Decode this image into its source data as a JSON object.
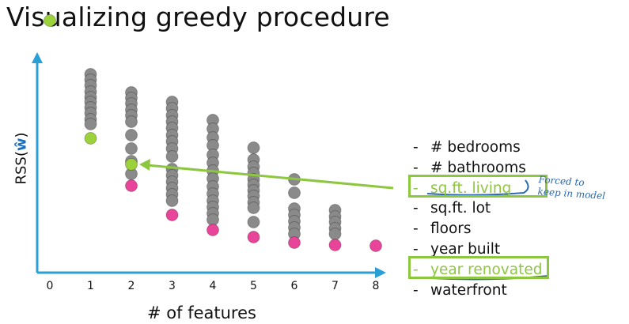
{
  "title": "Visualizing greedy procedure",
  "axes": {
    "y_label": "RSS(",
    "y_label_w": "ŵ",
    "y_label_close": ")",
    "x_label": "# of features"
  },
  "x_ticks": [
    "0",
    "1",
    "2",
    "3",
    "4",
    "5",
    "6",
    "7",
    "8"
  ],
  "features": [
    "# bedrooms",
    "# bathrooms",
    "sq.ft. living",
    "sq.ft. lot",
    "floors",
    "year built",
    "year renovated",
    "waterfront"
  ],
  "feature_dash": "-",
  "highlighted_features": [
    2,
    6
  ],
  "annotation": {
    "line1": "Forced to",
    "line2": "keep in model"
  },
  "colors": {
    "axis": "#2a9fd6",
    "gray_point": "#8a8a8a",
    "best_point": "#9bd23c",
    "pink_point": "#e8459a",
    "highlight": "#8dc63f",
    "ink": "#2a6ab0"
  },
  "columns": [
    {
      "x": 0,
      "gray": [],
      "green": 26,
      "pink": null
    },
    {
      "x": 1,
      "gray": [
        94,
        101,
        108,
        116,
        123,
        129,
        136,
        143,
        151,
        157
      ],
      "green": 175,
      "pink": null
    },
    {
      "x": 2,
      "gray": [
        117,
        124,
        131,
        139,
        146,
        154,
        171,
        188,
        204,
        220
      ],
      "green": 208,
      "pink": 235
    },
    {
      "x": 3,
      "gray": [
        129,
        137,
        146,
        154,
        162,
        171,
        179,
        188,
        198,
        214,
        222,
        230,
        238,
        246,
        254
      ],
      "green": null,
      "pink": 272
    },
    {
      "x": 4,
      "gray": [
        152,
        163,
        174,
        184,
        196,
        206,
        216,
        226,
        236,
        245,
        254,
        262,
        270,
        278
      ],
      "green": null,
      "pink": 291
    },
    {
      "x": 5,
      "gray": [
        187,
        202,
        211,
        219,
        227,
        234,
        241,
        248,
        256,
        263,
        281
      ],
      "green": null,
      "pink": 300
    },
    {
      "x": 6,
      "gray": [
        227,
        244,
        264,
        272,
        280,
        288,
        296
      ],
      "green": null,
      "pink": 307
    },
    {
      "x": 7,
      "gray": [
        266,
        274,
        281,
        289,
        296
      ],
      "green": null,
      "pink": 310
    },
    {
      "x": 8,
      "gray": [],
      "green": null,
      "pink": 311
    }
  ]
}
